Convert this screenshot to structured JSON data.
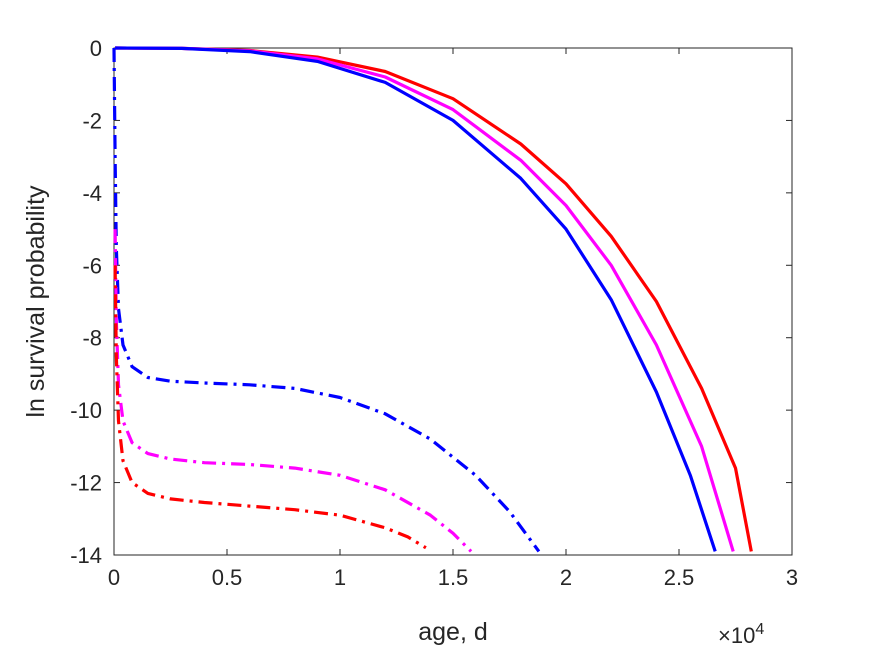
{
  "chart_data": {
    "type": "line",
    "title": "",
    "xlabel": "age, d",
    "ylabel": "ln survival probability",
    "x_scale_label": {
      "base": "×10",
      "exponent": "4"
    },
    "xlim": [
      0,
      3
    ],
    "ylim": [
      -14,
      0
    ],
    "x_ticks": [
      0,
      0.5,
      1,
      1.5,
      2,
      2.5,
      3
    ],
    "x_tick_labels": [
      "0",
      "0.5",
      "1",
      "1.5",
      "2",
      "2.5",
      "3"
    ],
    "y_ticks": [
      0,
      -2,
      -4,
      -6,
      -8,
      -10,
      -12,
      -14
    ],
    "y_tick_labels": [
      "0",
      "-2",
      "-4",
      "-6",
      "-8",
      "-10",
      "-12",
      "-14"
    ],
    "grid": false,
    "series": [
      {
        "color": "#ff0000",
        "style": "solid",
        "x": [
          0.005,
          0.3,
          0.6,
          0.9,
          1.2,
          1.5,
          1.8,
          2.0,
          2.2,
          2.4,
          2.6,
          2.75,
          2.82
        ],
        "y": [
          0,
          -0.01,
          -0.07,
          -0.25,
          -0.65,
          -1.4,
          -2.65,
          -3.75,
          -5.2,
          -7.0,
          -9.4,
          -11.6,
          -13.9
        ]
      },
      {
        "color": "#ff00ff",
        "style": "solid",
        "x": [
          0.005,
          0.3,
          0.6,
          0.9,
          1.2,
          1.5,
          1.8,
          2.0,
          2.2,
          2.4,
          2.6,
          2.74
        ],
        "y": [
          0,
          -0.01,
          -0.08,
          -0.3,
          -0.8,
          -1.7,
          -3.1,
          -4.35,
          -6.0,
          -8.2,
          -11.0,
          -13.9
        ]
      },
      {
        "color": "#0000ff",
        "style": "solid",
        "x": [
          0.005,
          0.3,
          0.6,
          0.9,
          1.2,
          1.5,
          1.8,
          2.0,
          2.2,
          2.4,
          2.55,
          2.66
        ],
        "y": [
          0,
          -0.01,
          -0.1,
          -0.37,
          -0.95,
          -2.0,
          -3.6,
          -5.0,
          -6.95,
          -9.5,
          -11.8,
          -13.9
        ]
      },
      {
        "color": "#0000ff",
        "style": "dashdot",
        "x": [
          0,
          0.005,
          0.01,
          0.02,
          0.04,
          0.08,
          0.15,
          0.25,
          0.4,
          0.6,
          0.8,
          1.0,
          1.2,
          1.4,
          1.6,
          1.75,
          1.88
        ],
        "y": [
          0,
          -3.0,
          -5.5,
          -7.2,
          -8.2,
          -8.8,
          -9.1,
          -9.2,
          -9.25,
          -9.3,
          -9.4,
          -9.65,
          -10.1,
          -10.8,
          -11.8,
          -12.8,
          -13.9
        ]
      },
      {
        "color": "#ff00ff",
        "style": "dashdot",
        "x": [
          0.005,
          0.01,
          0.02,
          0.04,
          0.08,
          0.15,
          0.25,
          0.4,
          0.6,
          0.8,
          1.0,
          1.2,
          1.4,
          1.5,
          1.58
        ],
        "y": [
          -5.0,
          -7.5,
          -9.3,
          -10.3,
          -10.9,
          -11.2,
          -11.35,
          -11.45,
          -11.5,
          -11.6,
          -11.8,
          -12.2,
          -12.9,
          -13.4,
          -13.9
        ]
      },
      {
        "color": "#ff0000",
        "style": "dashdot",
        "x": [
          0.005,
          0.01,
          0.02,
          0.04,
          0.08,
          0.15,
          0.25,
          0.4,
          0.6,
          0.8,
          1.0,
          1.2,
          1.3,
          1.38
        ],
        "y": [
          -6.0,
          -8.5,
          -10.3,
          -11.4,
          -12.0,
          -12.3,
          -12.45,
          -12.55,
          -12.65,
          -12.75,
          -12.9,
          -13.25,
          -13.5,
          -13.8
        ]
      }
    ]
  }
}
